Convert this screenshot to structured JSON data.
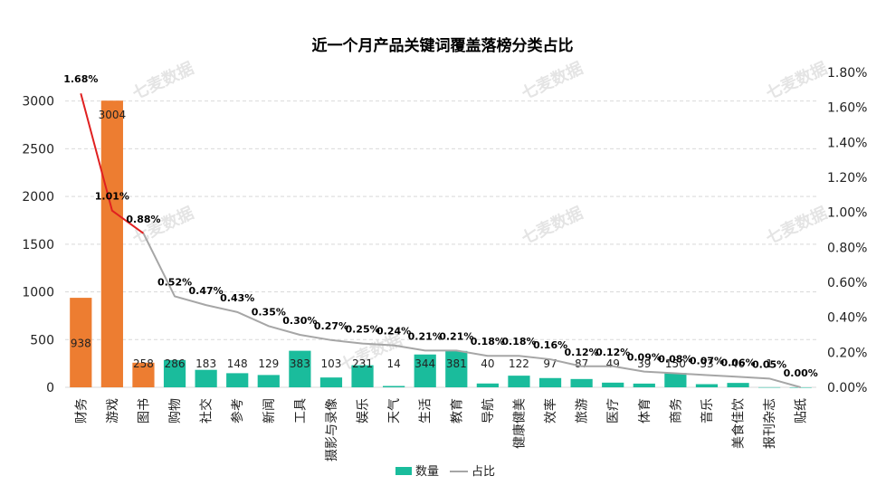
{
  "chart_data": {
    "type": "bar+line",
    "title": "近一个月产品关键词覆盖落榜分类占比",
    "categories": [
      "财务",
      "游戏",
      "图书",
      "购物",
      "社交",
      "参考",
      "新闻",
      "工具",
      "摄影与录像",
      "娱乐",
      "天气",
      "生活",
      "教育",
      "导航",
      "健康健美",
      "效率",
      "旅游",
      "医疗",
      "体育",
      "商务",
      "音乐",
      "美食佳饮",
      "报刊杂志",
      "贴纸"
    ],
    "series": [
      {
        "name": "数量",
        "type": "bar",
        "axis": "left",
        "values": [
          938,
          3004,
          258,
          286,
          183,
          148,
          129,
          383,
          103,
          231,
          14,
          344,
          381,
          40,
          122,
          97,
          87,
          49,
          39,
          150,
          33,
          46,
          1,
          0
        ],
        "labels": [
          "938",
          "3004",
          "258",
          "286",
          "183",
          "148",
          "129",
          "383",
          "103",
          "231",
          "14",
          "344",
          "381",
          "40",
          "122",
          "97",
          "87",
          "49",
          "39",
          "150",
          "33",
          "46",
          "1",
          ""
        ]
      },
      {
        "name": "占比",
        "type": "line",
        "axis": "right",
        "values": [
          1.68,
          1.01,
          0.88,
          0.52,
          0.47,
          0.43,
          0.35,
          0.3,
          0.27,
          0.25,
          0.24,
          0.21,
          0.21,
          0.18,
          0.18,
          0.16,
          0.12,
          0.12,
          0.09,
          0.08,
          0.07,
          0.06,
          0.05,
          0.0
        ],
        "labels": [
          "1.68%",
          "1.01%",
          "0.88%",
          "0.52%",
          "0.47%",
          "0.43%",
          "0.35%",
          "0.30%",
          "0.27%",
          "0.25%",
          "0.24%",
          "0.21%",
          "0.21%",
          "0.18%",
          "0.18%",
          "0.16%",
          "0.12%",
          "0.12%",
          "0.09%",
          "0.08%",
          "0.07%",
          "0.06%",
          "0.05%",
          "0.00%"
        ]
      }
    ],
    "highlight_count": 3,
    "y_left": {
      "ticks": [
        "0",
        "500",
        "1000",
        "1500",
        "2000",
        "2500",
        "3000"
      ],
      "ylim": [
        0,
        3300
      ]
    },
    "y_right": {
      "ticks": [
        "0.00%",
        "0.20%",
        "0.40%",
        "0.60%",
        "0.80%",
        "1.00%",
        "1.20%",
        "1.40%",
        "1.60%",
        "1.80%"
      ],
      "ylim": [
        0,
        1.8
      ]
    },
    "legend": {
      "placement": "bottom",
      "items": [
        "数量",
        "占比"
      ]
    },
    "grid": true
  },
  "watermark": {
    "text": "七麦数据"
  },
  "colors": {
    "bar_default": "#1ABC9C",
    "bar_highlight": "#ED7D31",
    "line_default": "#A6A6A6",
    "line_highlight": "#E02020",
    "grid": "#D9D9D9",
    "axis": "#BFBFBF"
  }
}
